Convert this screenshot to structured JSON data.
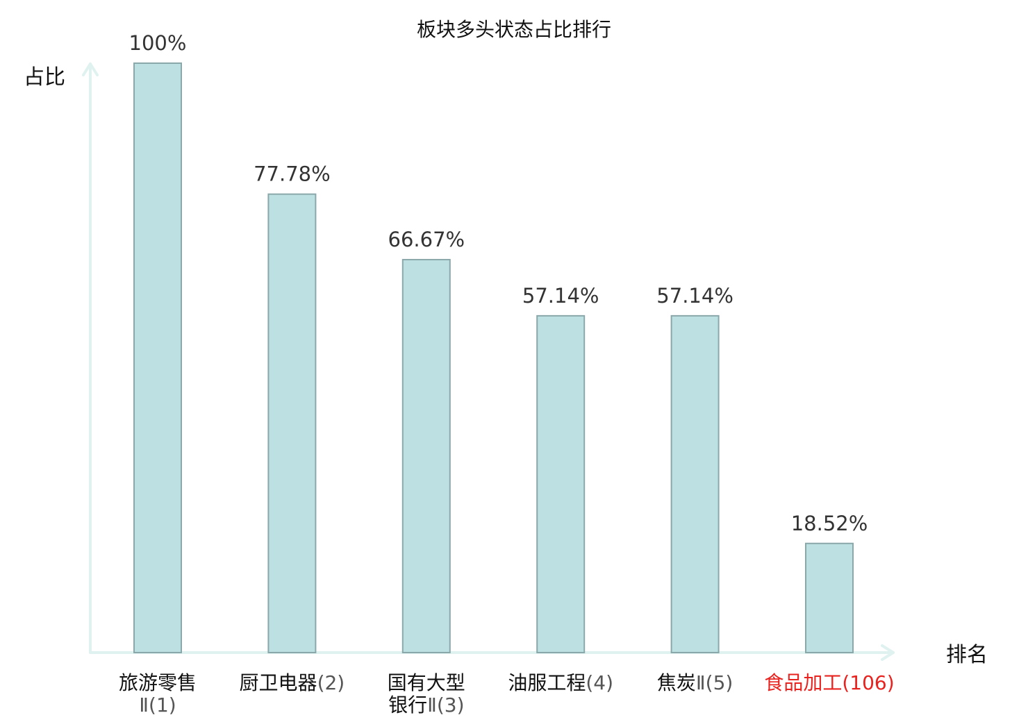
{
  "chart_data": {
    "type": "bar",
    "title": "板块多头状态占比排行",
    "xlabel": "排名",
    "ylabel": "占比",
    "ylim": [
      0,
      100
    ],
    "grid": false,
    "legend": "none",
    "categories": [
      {
        "name_lines": [
          "旅游零售",
          "Ⅱ(1)"
        ],
        "highlight": false
      },
      {
        "name_lines": [
          "厨卫电器(2)"
        ],
        "highlight": false
      },
      {
        "name_lines": [
          "国有大型",
          "银行Ⅱ(3)"
        ],
        "highlight": false
      },
      {
        "name_lines": [
          "油服工程(4)"
        ],
        "highlight": false
      },
      {
        "name_lines": [
          "焦炭Ⅱ(5)"
        ],
        "highlight": false
      },
      {
        "name_lines": [
          "食品加工(106)"
        ],
        "highlight": true
      }
    ],
    "values": [
      100,
      77.78,
      66.67,
      57.14,
      57.14,
      18.52
    ],
    "value_labels": [
      "100%",
      "77.78%",
      "66.67%",
      "57.14%",
      "57.14%",
      "18.52%"
    ],
    "colors": {
      "bar_fill": "#bde0e2",
      "bar_stroke": "#8aa8aa",
      "axis": "#dff2ef",
      "highlight_text": "#e8231f",
      "text": "#111111"
    }
  }
}
